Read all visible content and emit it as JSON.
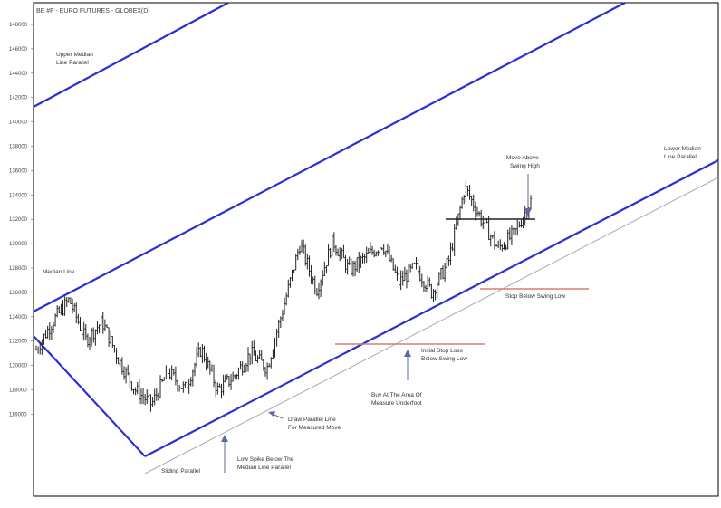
{
  "chart_data": {
    "type": "line",
    "title": "BE #F - EURO FUTURES - GLOBEX(D)",
    "y_ticks": [
      "148000",
      "146000",
      "144000",
      "142000",
      "140000",
      "138000",
      "136000",
      "134000",
      "132000",
      "130000",
      "128000",
      "126000",
      "124000",
      "122000",
      "120000",
      "118000",
      "116000"
    ],
    "price_series": [
      [
        "start",
        1.213
      ],
      [
        "p1",
        1.236
      ],
      [
        "p2",
        1.254
      ],
      [
        "p3",
        1.221
      ],
      [
        "p4",
        1.236
      ],
      [
        "p5",
        1.205
      ],
      [
        "p6",
        1.18
      ],
      [
        "p7",
        1.168
      ],
      [
        "p8",
        1.195
      ],
      [
        "p9",
        1.18
      ],
      [
        "p10",
        1.214
      ],
      [
        "p11",
        1.18
      ],
      [
        "p12",
        1.191
      ],
      [
        "p13",
        1.21
      ],
      [
        "p14",
        1.198
      ],
      [
        "p15",
        1.248
      ],
      [
        "p16",
        1.3
      ],
      [
        "p17",
        1.262
      ],
      [
        "p18",
        1.302
      ],
      [
        "p19",
        1.278
      ],
      [
        "p20",
        1.289
      ],
      [
        "p21",
        1.3
      ],
      [
        "p22",
        1.268
      ],
      [
        "p23",
        1.281
      ],
      [
        "p24",
        1.26
      ],
      [
        "p25",
        1.285
      ],
      [
        "p26",
        1.346
      ],
      [
        "p27",
        1.32
      ],
      [
        "p28",
        1.296
      ],
      [
        "p29",
        1.308
      ],
      [
        "p30",
        1.335
      ]
    ],
    "annotations": [
      {
        "id": "upper_parallel",
        "text": "Upper Median Line Parallel"
      },
      {
        "id": "median",
        "text": "Median Line"
      },
      {
        "id": "lower_parallel",
        "text": "Lower Median Line Parallel"
      },
      {
        "id": "move_above",
        "text": "Move Above Swing High"
      },
      {
        "id": "stop_below",
        "text": "Stop Below Swing Low"
      },
      {
        "id": "initial_stop",
        "text": "Initial Stop Loss Below Swing Low"
      },
      {
        "id": "buy_area",
        "text": "Buy At The Area Of Measure Underfoot"
      },
      {
        "id": "draw_parallel",
        "text": "Draw Parallel Line For Measured Move"
      },
      {
        "id": "low_spike",
        "text": "Low Spike Below The Median Line Parallel"
      },
      {
        "id": "sliding",
        "text": "Sliding Parallel"
      }
    ],
    "colors": {
      "median_lines": "#2b2fd0",
      "price": "#222222",
      "stop_lines": "#d08070",
      "swing_high_line": "#222222",
      "sliding_parallel": "#aaaaaa"
    },
    "grid": false
  },
  "labels": {
    "title": "BE #F - EURO FUTURES - GLOBEX(D)",
    "upper_parallel_1": "Upper Median",
    "upper_parallel_2": "Line Parallel",
    "median": "Median Line",
    "lower_parallel_1": "Lower Median",
    "lower_parallel_2": "Line Parallel",
    "move_above_1": "Move Above",
    "move_above_2": "Swing High",
    "stop_below": "Stop Below Swing Low",
    "initial_stop_1": "Initial Stop Loss",
    "initial_stop_2": "Below Swing Low",
    "buy_area_1": "Buy At The Area Of",
    "buy_area_2": "Measure Underfoot",
    "draw_parallel_1": "Draw Parallel Line",
    "draw_parallel_2": "For Measured Move",
    "low_spike_1": "Low Spike Below The",
    "low_spike_2": "Median Line Parallel",
    "sliding": "Sliding Parallel"
  }
}
